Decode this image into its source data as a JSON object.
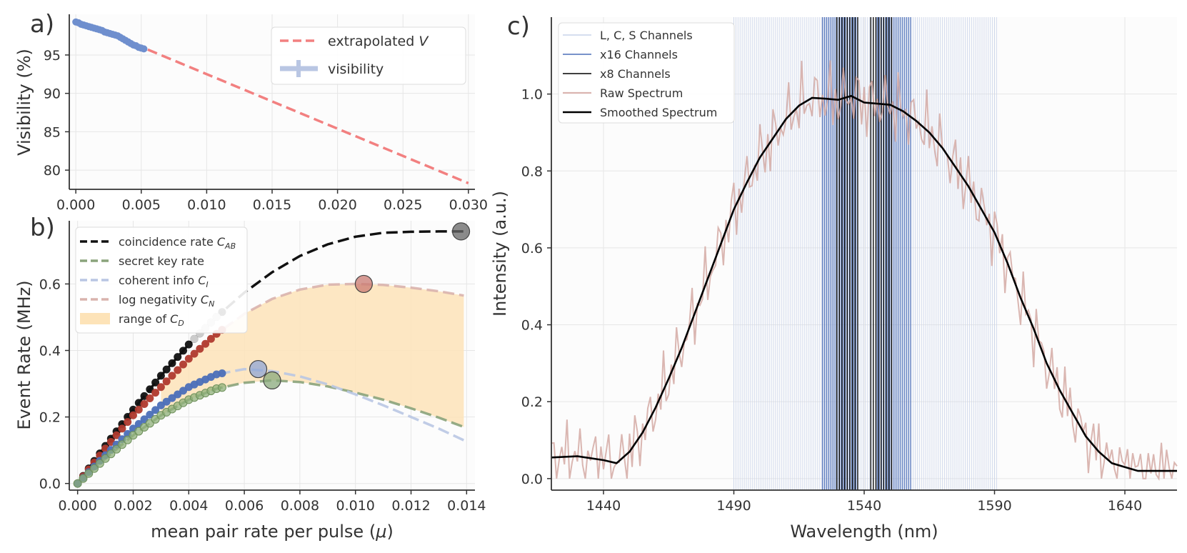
{
  "chart_data": [
    {
      "panel": "a)",
      "type": "line",
      "xlabel": "",
      "ylabel": "Visibility (%)",
      "xlim": [
        -0.0005,
        0.0305
      ],
      "ylim": [
        77.5,
        100.3
      ],
      "xticks": [
        "0.000",
        "0.005",
        "0.010",
        "0.015",
        "0.020",
        "0.025",
        "0.030"
      ],
      "xtick_values": [
        0,
        0.005,
        0.01,
        0.015,
        0.02,
        0.025,
        0.03
      ],
      "yticks": [
        "80",
        "85",
        "90",
        "95"
      ],
      "ytick_values": [
        80,
        85,
        90,
        95
      ],
      "grid": true,
      "legend_position": "top-right",
      "series": [
        {
          "name": "extrapolated V",
          "label_main": "extrapolated ",
          "label_italic": "V",
          "kind": "dashed-line",
          "color": "#f28080",
          "x": [
            0.0055,
            0.03
          ],
          "y": [
            95.7,
            78.3
          ]
        },
        {
          "name": "visibility",
          "label_main": "visibility",
          "kind": "errorbar-markers",
          "color": "#6f8fce",
          "x": [
            0.0,
            0.0002,
            0.0004,
            0.0006,
            0.0008,
            0.001,
            0.0012,
            0.0014,
            0.0016,
            0.0018,
            0.002,
            0.0022,
            0.0024,
            0.0026,
            0.0028,
            0.003,
            0.0032,
            0.0034,
            0.0036,
            0.0038,
            0.004,
            0.0042,
            0.0044,
            0.0046,
            0.0048,
            0.005,
            0.0052
          ],
          "y": [
            99.3,
            99.2,
            99.0,
            98.9,
            98.8,
            98.7,
            98.6,
            98.5,
            98.4,
            98.3,
            98.2,
            98.0,
            97.9,
            97.8,
            97.7,
            97.6,
            97.5,
            97.3,
            97.1,
            96.9,
            96.7,
            96.5,
            96.3,
            96.2,
            96.0,
            95.9,
            95.8
          ]
        }
      ]
    },
    {
      "panel": "b)",
      "type": "line",
      "xlabel": "mean pair rate per pulse (μ)",
      "xlabel_main": "mean pair rate per pulse (",
      "xlabel_italic": "μ",
      "xlabel_end": ")",
      "ylabel": "Event Rate (MHz)",
      "xlim": [
        -0.0003,
        0.0143
      ],
      "ylim": [
        -0.02,
        0.79
      ],
      "xticks": [
        "0.000",
        "0.002",
        "0.004",
        "0.006",
        "0.008",
        "0.010",
        "0.012",
        "0.014"
      ],
      "xtick_values": [
        0,
        0.002,
        0.004,
        0.006,
        0.008,
        0.01,
        0.012,
        0.014
      ],
      "yticks": [
        "0.0",
        "0.2",
        "0.4",
        "0.6"
      ],
      "ytick_values": [
        0,
        0.2,
        0.4,
        0.6
      ],
      "grid": true,
      "legend_position": "top-left",
      "legend": [
        {
          "main": "coincidence rate ",
          "sym": "C",
          "sub": "AB",
          "color": "#111111",
          "kind": "dash"
        },
        {
          "main": "secret key rate",
          "sym": "",
          "sub": "",
          "color": "#8aa37b",
          "kind": "dash"
        },
        {
          "main": "coherent info ",
          "sym": "C",
          "sub": "I",
          "color": "#b9c6e3",
          "kind": "dash"
        },
        {
          "main": "log negativity ",
          "sym": "C",
          "sub": "N",
          "color": "#d9b3ad",
          "kind": "dash"
        },
        {
          "main": "range of ",
          "sym": "C",
          "sub": "D",
          "color": "#fde3b8",
          "kind": "patch"
        }
      ],
      "curves": {
        "x": [
          0,
          0.001,
          0.002,
          0.003,
          0.004,
          0.005,
          0.006,
          0.007,
          0.008,
          0.009,
          0.01,
          0.011,
          0.012,
          0.013,
          0.0139
        ],
        "coincidence": [
          0,
          0.113,
          0.222,
          0.324,
          0.418,
          0.501,
          0.574,
          0.635,
          0.684,
          0.719,
          0.742,
          0.754,
          0.757,
          0.758,
          0.758
        ],
        "log_negativity": [
          0,
          0.105,
          0.205,
          0.29,
          0.375,
          0.45,
          0.51,
          0.555,
          0.583,
          0.598,
          0.6,
          0.597,
          0.589,
          0.578,
          0.565
        ],
        "coherent_info": [
          0,
          0.085,
          0.165,
          0.235,
          0.29,
          0.328,
          0.344,
          0.338,
          0.322,
          0.298,
          0.268,
          0.235,
          0.2,
          0.165,
          0.13
        ],
        "secret_key": [
          0,
          0.075,
          0.145,
          0.205,
          0.252,
          0.285,
          0.303,
          0.31,
          0.305,
          0.292,
          0.273,
          0.252,
          0.226,
          0.198,
          0.17
        ]
      },
      "markers": {
        "x": [
          0.0,
          0.0002,
          0.0004,
          0.0006,
          0.0008,
          0.001,
          0.0012,
          0.0014,
          0.0016,
          0.0018,
          0.002,
          0.0022,
          0.0024,
          0.0026,
          0.0028,
          0.003,
          0.0032,
          0.0034,
          0.0036,
          0.0038,
          0.004,
          0.0042,
          0.0044,
          0.0046,
          0.0048,
          0.005,
          0.0052
        ],
        "coincidence_color": "#111111",
        "log_negativity_color": "#b03a2e",
        "coherent_info_color": "#4c6fb8",
        "secret_key_color": "#8fb07a"
      },
      "optima": [
        {
          "name": "coincidence max",
          "x": 0.0138,
          "y": 0.758,
          "color": "#666666"
        },
        {
          "name": "log negativity max",
          "x": 0.0103,
          "y": 0.6,
          "color": "#c97a72"
        },
        {
          "name": "coherent info max",
          "x": 0.0065,
          "y": 0.344,
          "color": "#8fa6d6"
        },
        {
          "name": "secret key max",
          "x": 0.007,
          "y": 0.31,
          "color": "#89a97c"
        }
      ]
    },
    {
      "panel": "c)",
      "type": "line",
      "xlabel": "Wavelength (nm)",
      "ylabel": "Intensity (a.u.)",
      "xlim": [
        1420,
        1660
      ],
      "ylim": [
        -0.03,
        1.2
      ],
      "xticks": [
        "1440",
        "1490",
        "1540",
        "1590",
        "1640"
      ],
      "xtick_values": [
        1440,
        1490,
        1540,
        1590,
        1640
      ],
      "yticks": [
        "0.0",
        "0.2",
        "0.4",
        "0.6",
        "0.8",
        "1.0"
      ],
      "ytick_values": [
        0,
        0.2,
        0.4,
        0.6,
        0.8,
        1.0
      ],
      "grid": true,
      "legend_position": "top-left",
      "legend": [
        {
          "label": "L, C, S Channels",
          "color": "#c9d3ea"
        },
        {
          "label": "x16 Channels",
          "color": "#4c6fb8"
        },
        {
          "label": "x8 Channels",
          "color": "#000000"
        },
        {
          "label": "Raw Spectrum",
          "color": "#dbb5b0"
        },
        {
          "label": "Smoothed Spectrum",
          "color": "#000000"
        }
      ],
      "channel_bands": {
        "lcs": {
          "start": 1490,
          "end": 1591,
          "step": 0.8,
          "color": "#c9d3ea"
        },
        "x16_left": {
          "start": 1524,
          "end": 1537,
          "step": 0.8,
          "color": "#4c6fb8"
        },
        "x16_right": {
          "start": 1545,
          "end": 1558,
          "step": 0.8,
          "color": "#4c6fb8"
        },
        "x8_left": {
          "start": 1529.5,
          "end": 1537.5,
          "step": 1.0,
          "color": "#000000"
        },
        "x8_right": {
          "start": 1542.5,
          "end": 1550.5,
          "step": 1.0,
          "color": "#000000"
        }
      },
      "smoothed": {
        "x": [
          1420,
          1430,
          1440,
          1445,
          1450,
          1455,
          1460,
          1465,
          1470,
          1475,
          1480,
          1485,
          1490,
          1495,
          1500,
          1505,
          1510,
          1515,
          1520,
          1525,
          1530,
          1535,
          1540,
          1545,
          1550,
          1555,
          1560,
          1565,
          1570,
          1575,
          1580,
          1585,
          1590,
          1595,
          1600,
          1605,
          1610,
          1615,
          1620,
          1625,
          1630,
          1635,
          1640,
          1645,
          1650,
          1660
        ],
        "y": [
          0.055,
          0.058,
          0.048,
          0.04,
          0.07,
          0.12,
          0.185,
          0.26,
          0.34,
          0.43,
          0.52,
          0.61,
          0.7,
          0.77,
          0.835,
          0.885,
          0.935,
          0.97,
          0.99,
          0.988,
          0.985,
          0.995,
          0.978,
          0.975,
          0.972,
          0.955,
          0.93,
          0.9,
          0.86,
          0.81,
          0.76,
          0.7,
          0.64,
          0.56,
          0.47,
          0.39,
          0.3,
          0.23,
          0.17,
          0.11,
          0.07,
          0.04,
          0.03,
          0.02,
          0.02,
          0.02
        ]
      },
      "raw_amplitude": 0.055
    }
  ]
}
